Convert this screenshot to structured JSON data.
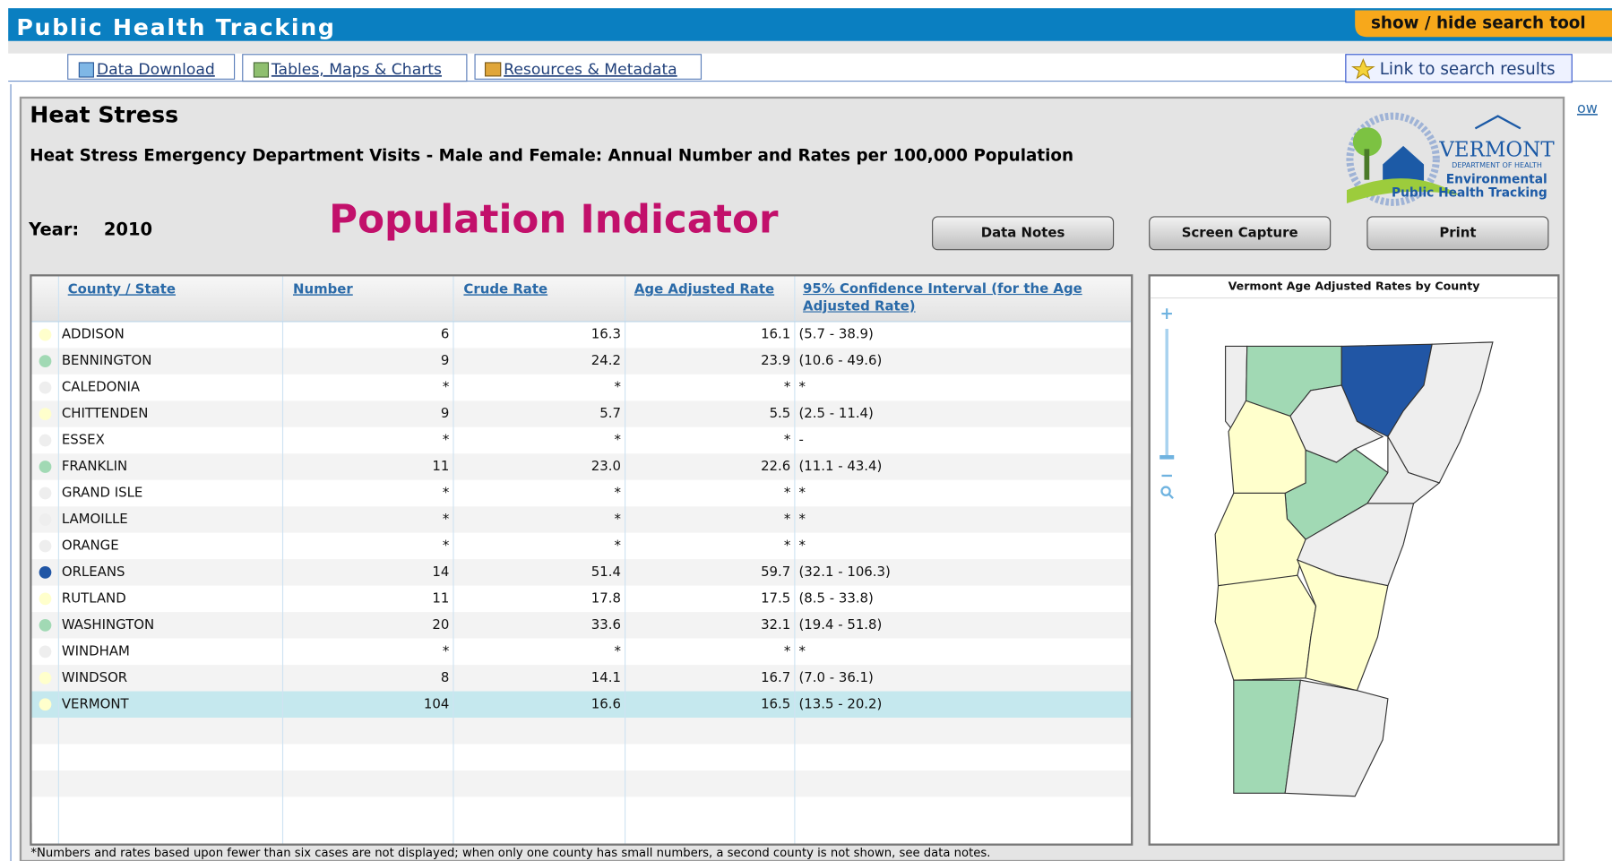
{
  "header": {
    "title": "Public Health Tracking",
    "search_toggle": "show / hide search tool"
  },
  "tabs": [
    "Data Download",
    "Tables, Maps & Charts",
    "Resources & Metadata"
  ],
  "link_button": "Link to search results",
  "edge_text": "ow",
  "panel": {
    "title": "Heat Stress",
    "subtitle": "Heat Stress Emergency Department Visits - Male and Female: Annual Number and Rates per 100,000 Population",
    "year_label": "Year:",
    "year": "2010",
    "indicator_label": "Population Indicator",
    "buttons": [
      "Data Notes",
      "Screen Capture",
      "Print"
    ]
  },
  "table": {
    "columns": [
      "County / State",
      "Number",
      "Crude Rate",
      "Age Adjusted Rate",
      "95% Confidence Interval (for the Age Adjusted Rate)"
    ],
    "rows": [
      [
        "ADDISON",
        "6",
        "16.3",
        "16.1",
        "(5.7 - 38.9)"
      ],
      [
        "BENNINGTON",
        "9",
        "24.2",
        "23.9",
        "(10.6 - 49.6)"
      ],
      [
        "CALEDONIA",
        "*",
        "*",
        "*",
        "*"
      ],
      [
        "CHITTENDEN",
        "9",
        "5.7",
        "5.5",
        "(2.5 - 11.4)"
      ],
      [
        "ESSEX",
        "*",
        "*",
        "*",
        "-"
      ],
      [
        "FRANKLIN",
        "11",
        "23.0",
        "22.6",
        "(11.1 - 43.4)"
      ],
      [
        "GRAND ISLE",
        "*",
        "*",
        "*",
        "*"
      ],
      [
        "LAMOILLE",
        "*",
        "*",
        "*",
        "*"
      ],
      [
        "ORANGE",
        "*",
        "*",
        "*",
        "*"
      ],
      [
        "ORLEANS",
        "14",
        "51.4",
        "59.7",
        "(32.1 - 106.3)"
      ],
      [
        "RUTLAND",
        "11",
        "17.8",
        "17.5",
        "(8.5 - 33.8)"
      ],
      [
        "WASHINGTON",
        "20",
        "33.6",
        "32.1",
        "(19.4 - 51.8)"
      ],
      [
        "WINDHAM",
        "*",
        "*",
        "*",
        "*"
      ],
      [
        "WINDSOR",
        "8",
        "14.1",
        "16.7",
        "(7.0 - 36.1)"
      ],
      [
        "VERMONT",
        "104",
        "16.6",
        "16.5",
        "(13.5 - 20.2)"
      ]
    ],
    "row_colors": [
      "#ffffcc",
      "#a1d9b4",
      "#eeeeee",
      "#ffffcc",
      "#eeeeee",
      "#a1d9b4",
      "#eeeeee",
      "#eeeeee",
      "#eeeeee",
      "#2156a5",
      "#ffffcc",
      "#a1d9b4",
      "#eeeeee",
      "#ffffcc",
      "#ffffcc"
    ]
  },
  "map": {
    "title": "Vermont Age Adjusted Rates by County",
    "logo": {
      "name": "VERMONT",
      "department": "DEPARTMENT OF HEALTH",
      "line1": "Environmental",
      "line2": "Public Health Tracking"
    }
  },
  "footnote": "*Numbers and rates based upon fewer than six cases are not displayed; when only one county has small numbers, a second county is not shown, see data notes."
}
